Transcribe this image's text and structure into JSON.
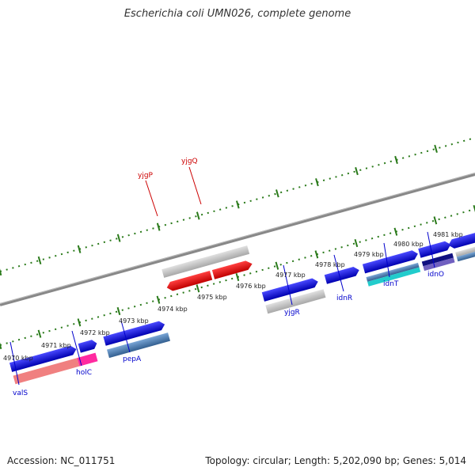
{
  "header": {
    "title": "Escherichia coli UMN026, complete genome"
  },
  "footer": {
    "accession": "Accession: NC_011751",
    "summary": "Topology: circular; Length: 5,202,090 bp; Genes: 5,014"
  },
  "scale": {
    "ticks": [
      "4970 kbp",
      "4971 kbp",
      "4972 kbp",
      "4973 kbp",
      "4974 kbp",
      "4975 kbp",
      "4976 kbp",
      "4977 kbp",
      "4978 kbp",
      "4979 kbp",
      "4980 kbp",
      "4981 kbp"
    ]
  },
  "genes": [
    {
      "name": "valS",
      "color": "#0000cc"
    },
    {
      "name": "holC",
      "color": "#0000cc"
    },
    {
      "name": "pepA",
      "color": "#0000cc"
    },
    {
      "name": "yjgP",
      "color": "#cc0000"
    },
    {
      "name": "yjgQ",
      "color": "#cc0000"
    },
    {
      "name": "yjgR",
      "color": "#0000cc"
    },
    {
      "name": "idnR",
      "color": "#0000cc"
    },
    {
      "name": "idnT",
      "color": "#0000cc"
    },
    {
      "name": "idnO",
      "color": "#0000cc"
    }
  ],
  "colors": {
    "forward_cds": "#1a1ae6",
    "reverse_cds": "#ee1111",
    "gene_bar": "#c4c4c4",
    "backbone": "#808080",
    "tick": "#2a7a1a",
    "feature_steel": "#4a7fb5",
    "feature_pink": "#f08080",
    "feature_magenta": "#ff2aa0",
    "feature_cyan": "#22cccc",
    "feature_violet": "#7060c0"
  }
}
